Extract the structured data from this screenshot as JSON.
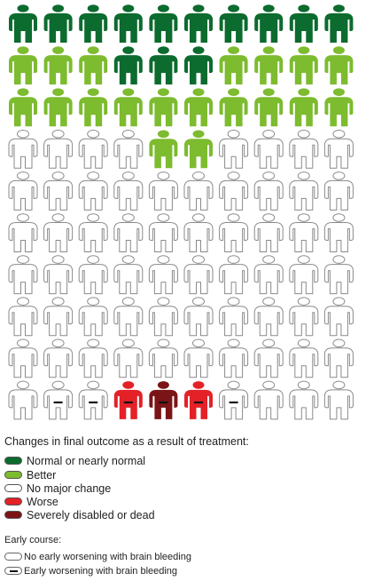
{
  "chart_data": {
    "type": "pictogram",
    "rows": 10,
    "columns": 10,
    "grid": [
      [
        "normal",
        "normal",
        "normal",
        "normal",
        "normal",
        "normal",
        "normal",
        "normal",
        "normal",
        "normal"
      ],
      [
        "better",
        "better",
        "better",
        "normal",
        "normal",
        "normal",
        "better",
        "better",
        "better",
        "better"
      ],
      [
        "better",
        "better",
        "better",
        "better",
        "better",
        "better",
        "better",
        "better",
        "better",
        "better"
      ],
      [
        "none",
        "none",
        "none",
        "none",
        "better",
        "better",
        "none",
        "none",
        "none",
        "none"
      ],
      [
        "none",
        "none",
        "none",
        "none",
        "none",
        "none",
        "none",
        "none",
        "none",
        "none"
      ],
      [
        "none",
        "none",
        "none",
        "none",
        "none",
        "none",
        "none",
        "none",
        "none",
        "none"
      ],
      [
        "none",
        "none",
        "none",
        "none",
        "none",
        "none",
        "none",
        "none",
        "none",
        "none"
      ],
      [
        "none",
        "none",
        "none",
        "none",
        "none",
        "none",
        "none",
        "none",
        "none",
        "none"
      ],
      [
        "none",
        "none",
        "none",
        "none",
        "none",
        "none",
        "none",
        "none",
        "none",
        "none"
      ],
      [
        "none",
        "none",
        "none",
        "worse",
        "severe",
        "worse",
        "none",
        "none",
        "none",
        "none"
      ]
    ],
    "early_worsening": [
      [
        9,
        1
      ],
      [
        9,
        2
      ],
      [
        9,
        3
      ],
      [
        9,
        4
      ],
      [
        9,
        5
      ],
      [
        9,
        6
      ]
    ],
    "counts": {
      "normal": 13,
      "better": 19,
      "none": 65,
      "worse": 2,
      "severe": 1
    }
  },
  "legend": {
    "title": "Changes in final outcome as a result of treatment:",
    "items": [
      {
        "key": "normal",
        "label": "Normal or nearly normal",
        "color": "#0c6b2e"
      },
      {
        "key": "better",
        "label": "Better",
        "color": "#7dbb2f"
      },
      {
        "key": "none",
        "label": "No major change",
        "color": "#ffffff"
      },
      {
        "key": "worse",
        "label": "Worse",
        "color": "#e32127"
      },
      {
        "key": "severe",
        "label": "Severely disabled or dead",
        "color": "#7a1417"
      }
    ]
  },
  "early_course": {
    "title": "Early course:",
    "items": [
      {
        "key": "no_early",
        "label": "No early worsening with brain bleeding"
      },
      {
        "key": "early",
        "label": "Early worsening with brain bleeding"
      }
    ]
  }
}
